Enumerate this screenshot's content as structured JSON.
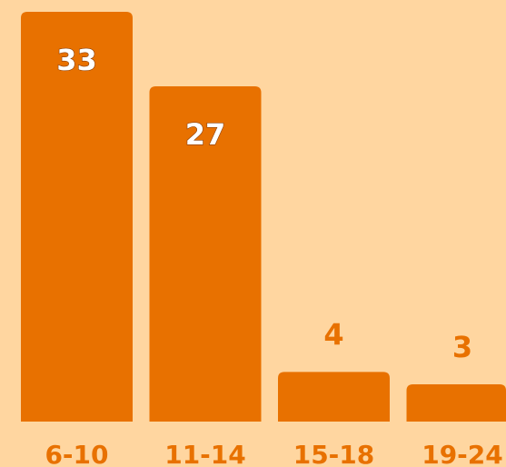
{
  "chart_data": {
    "type": "bar",
    "categories": [
      "6-10",
      "11-14",
      "15-18",
      "19-24"
    ],
    "values": [
      33,
      27,
      4,
      3
    ],
    "title": "",
    "xlabel": "",
    "ylabel": "",
    "ylim": [
      0,
      33
    ],
    "grid": false,
    "legend": "none",
    "bar_color": "#E87100",
    "background_color": "#FFD6A0",
    "label_color": "#E87100",
    "inside_label_color": "#FFFFFF"
  }
}
